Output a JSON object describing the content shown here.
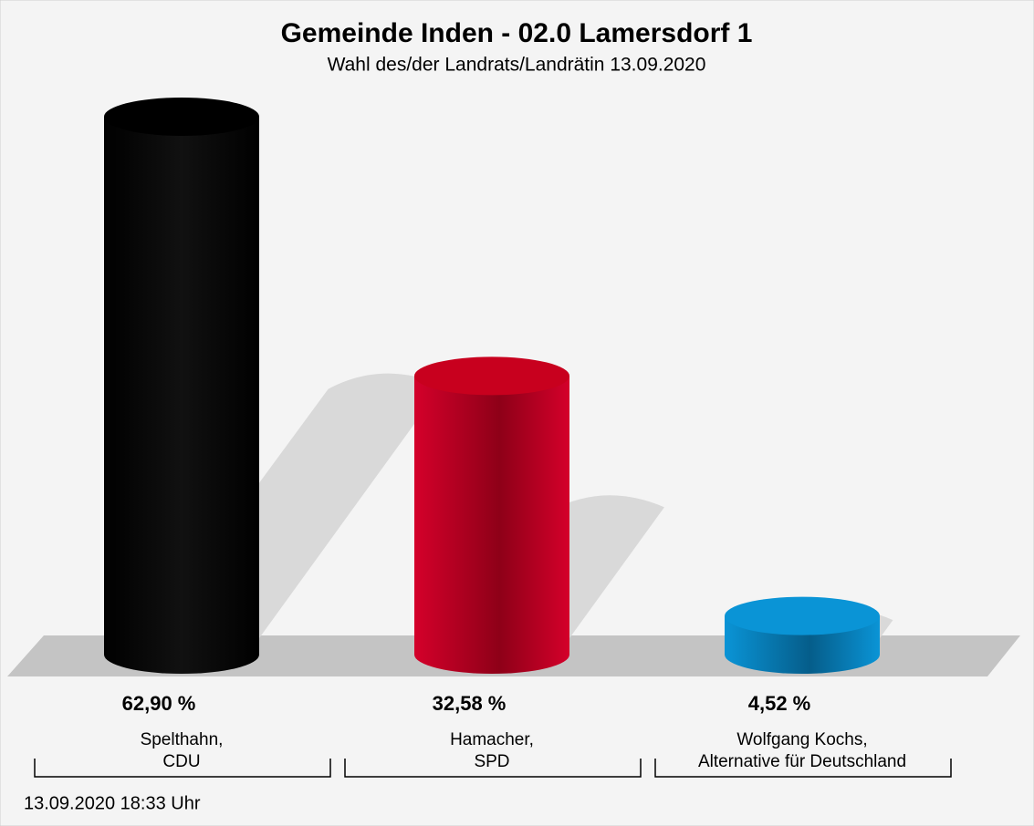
{
  "chart_data": {
    "type": "cylinder",
    "title": "Gemeinde Inden - 02.0 Lamersdorf 1",
    "subtitle": "Wahl des/der Landrats/Landrätin 13.09.2020",
    "categories": [
      "Spelthahn,\nCDU",
      "Hamacher,\nSPD",
      "Wolfgang Kochs,\nAlternative für Deutschland"
    ],
    "values": [
      62.9,
      32.58,
      4.52
    ],
    "value_labels": [
      "62,90 %",
      "32,58 %",
      "4,52 %"
    ],
    "colors": [
      "#000000",
      "#c8001e",
      "#0a94d6"
    ],
    "footnote": "13.09.2020 18:33 Uhr"
  }
}
